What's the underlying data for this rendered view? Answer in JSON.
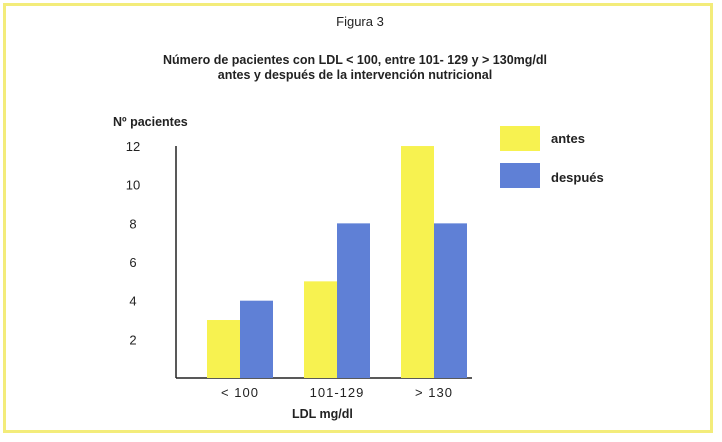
{
  "figure_label": "Figura 3",
  "chart_data": {
    "type": "bar",
    "title": "Número de pacientes con LDL < 100, entre 101- 129 y > 130mg/dl",
    "subtitle": "antes y después de la intervención nutricional",
    "ylabel": "Nº pacientes",
    "xlabel": "LDL mg/dl",
    "categories": [
      "< 100",
      "101-129",
      "> 130"
    ],
    "yticks": [
      2,
      4,
      6,
      8,
      10,
      12
    ],
    "ylim": [
      0,
      12.5
    ],
    "grid": false,
    "legend_position": "top-right",
    "series": [
      {
        "name": "antes",
        "values": [
          3,
          5,
          12
        ],
        "color": "#f7f250"
      },
      {
        "name": "después",
        "values": [
          4,
          8,
          8
        ],
        "color": "#5f80d6"
      }
    ]
  }
}
